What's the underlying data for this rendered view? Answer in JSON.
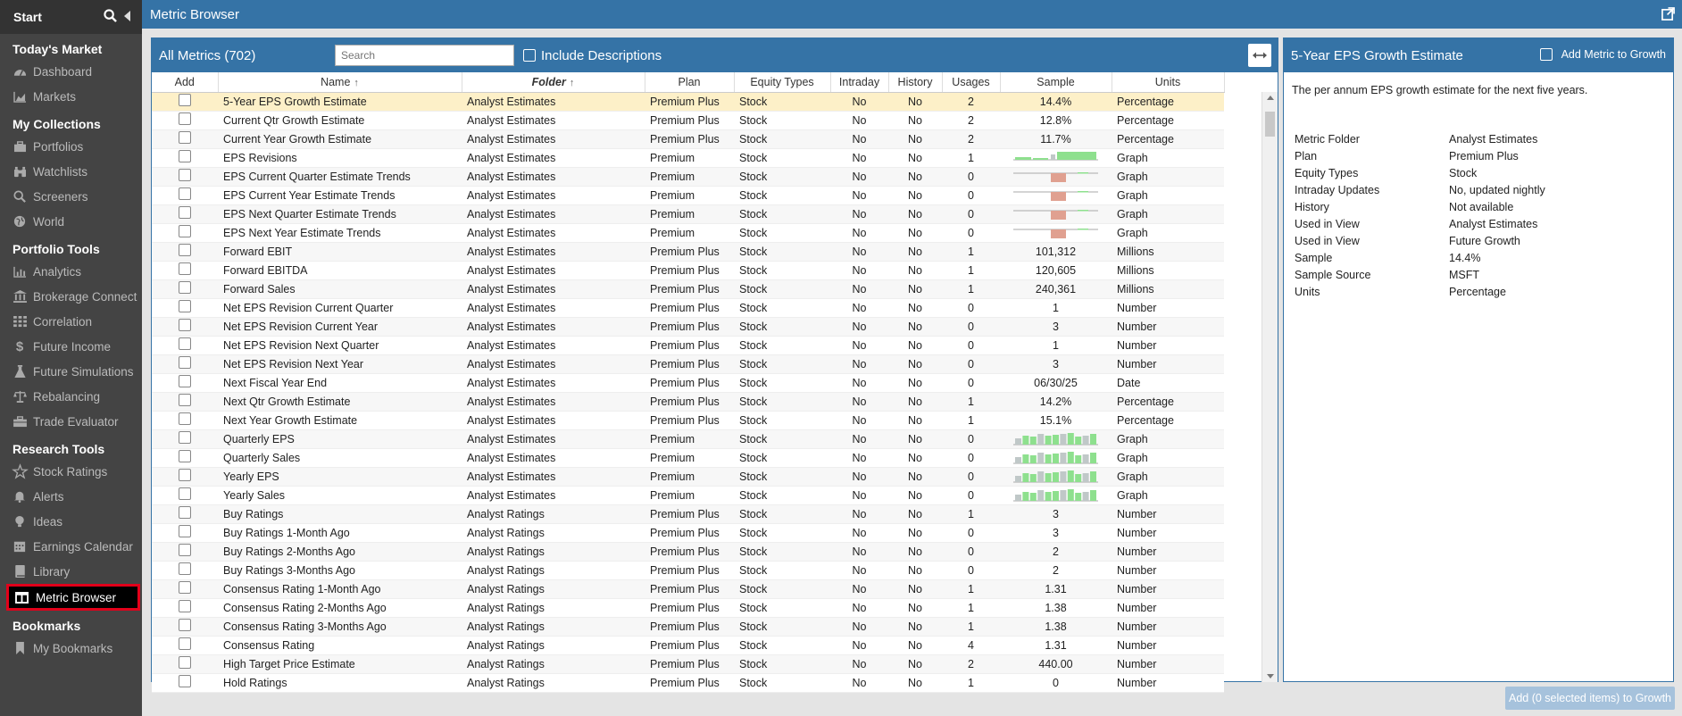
{
  "app": {
    "title": "Metric Browser"
  },
  "sidebar": {
    "start_label": "Start",
    "sections": [
      {
        "title": "Today's Market",
        "items": [
          {
            "label": "Dashboard",
            "icon": "dashboard-icon"
          },
          {
            "label": "Markets",
            "icon": "area-chart-icon"
          }
        ]
      },
      {
        "title": "My Collections",
        "items": [
          {
            "label": "Portfolios",
            "icon": "briefcase-icon"
          },
          {
            "label": "Watchlists",
            "icon": "binoculars-icon"
          },
          {
            "label": "Screeners",
            "icon": "search-icon"
          },
          {
            "label": "World",
            "icon": "globe-icon"
          }
        ]
      },
      {
        "title": "Portfolio Tools",
        "items": [
          {
            "label": "Analytics",
            "icon": "bar-chart-icon"
          },
          {
            "label": "Brokerage Connect",
            "icon": "bank-icon"
          },
          {
            "label": "Correlation",
            "icon": "grid-icon"
          },
          {
            "label": "Future Income",
            "icon": "dollar-icon"
          },
          {
            "label": "Future Simulations",
            "icon": "flask-icon"
          },
          {
            "label": "Rebalancing",
            "icon": "balance-scale-icon"
          },
          {
            "label": "Trade Evaluator",
            "icon": "toolbox-icon"
          }
        ]
      },
      {
        "title": "Research Tools",
        "items": [
          {
            "label": "Stock Ratings",
            "icon": "star-icon"
          },
          {
            "label": "Alerts",
            "icon": "bell-icon"
          },
          {
            "label": "Ideas",
            "icon": "lightbulb-icon"
          },
          {
            "label": "Earnings Calendar",
            "icon": "calendar-icon"
          },
          {
            "label": "Library",
            "icon": "book-icon"
          },
          {
            "label": "Metric Browser",
            "icon": "table-icon",
            "active": true
          }
        ]
      },
      {
        "title": "Bookmarks",
        "items": [
          {
            "label": "My Bookmarks",
            "icon": "bookmark-icon"
          }
        ]
      }
    ]
  },
  "main": {
    "title": "All Metrics (702)",
    "search_placeholder": "Search",
    "include_descriptions_label": "Include Descriptions",
    "columns": [
      "Add",
      "Name",
      "Folder",
      "Plan",
      "Equity Types",
      "Intraday",
      "History",
      "Usages",
      "Sample",
      "Units"
    ],
    "rows": [
      {
        "name": "5-Year EPS Growth Estimate",
        "folder": "Analyst Estimates",
        "plan": "Premium Plus",
        "equity": "Stock",
        "intraday": "No",
        "history": "No",
        "usages": "2",
        "sample": "14.4%",
        "units": "Percentage",
        "selected": true
      },
      {
        "name": "Current Qtr Growth Estimate",
        "folder": "Analyst Estimates",
        "plan": "Premium Plus",
        "equity": "Stock",
        "intraday": "No",
        "history": "No",
        "usages": "2",
        "sample": "12.8%",
        "units": "Percentage"
      },
      {
        "name": "Current Year Growth Estimate",
        "folder": "Analyst Estimates",
        "plan": "Premium Plus",
        "equity": "Stock",
        "intraday": "No",
        "history": "No",
        "usages": "2",
        "sample": "11.7%",
        "units": "Percentage"
      },
      {
        "name": "EPS Revisions",
        "folder": "Analyst Estimates",
        "plan": "Premium",
        "equity": "Stock",
        "intraday": "No",
        "history": "No",
        "usages": "1",
        "sample": "",
        "units": "Graph",
        "spark": "revisions"
      },
      {
        "name": "EPS Current Quarter Estimate Trends",
        "folder": "Analyst Estimates",
        "plan": "Premium",
        "equity": "Stock",
        "intraday": "No",
        "history": "No",
        "usages": "0",
        "sample": "",
        "units": "Graph",
        "spark": "trend"
      },
      {
        "name": "EPS Current Year Estimate Trends",
        "folder": "Analyst Estimates",
        "plan": "Premium",
        "equity": "Stock",
        "intraday": "No",
        "history": "No",
        "usages": "0",
        "sample": "",
        "units": "Graph",
        "spark": "trend"
      },
      {
        "name": "EPS Next Quarter Estimate Trends",
        "folder": "Analyst Estimates",
        "plan": "Premium",
        "equity": "Stock",
        "intraday": "No",
        "history": "No",
        "usages": "0",
        "sample": "",
        "units": "Graph",
        "spark": "trend"
      },
      {
        "name": "EPS Next Year Estimate Trends",
        "folder": "Analyst Estimates",
        "plan": "Premium",
        "equity": "Stock",
        "intraday": "No",
        "history": "No",
        "usages": "0",
        "sample": "",
        "units": "Graph",
        "spark": "trend"
      },
      {
        "name": "Forward EBIT",
        "folder": "Analyst Estimates",
        "plan": "Premium Plus",
        "equity": "Stock",
        "intraday": "No",
        "history": "No",
        "usages": "1",
        "sample": "101,312",
        "units": "Millions"
      },
      {
        "name": "Forward EBITDA",
        "folder": "Analyst Estimates",
        "plan": "Premium Plus",
        "equity": "Stock",
        "intraday": "No",
        "history": "No",
        "usages": "1",
        "sample": "120,605",
        "units": "Millions"
      },
      {
        "name": "Forward Sales",
        "folder": "Analyst Estimates",
        "plan": "Premium Plus",
        "equity": "Stock",
        "intraday": "No",
        "history": "No",
        "usages": "1",
        "sample": "240,361",
        "units": "Millions"
      },
      {
        "name": "Net EPS Revision Current Quarter",
        "folder": "Analyst Estimates",
        "plan": "Premium Plus",
        "equity": "Stock",
        "intraday": "No",
        "history": "No",
        "usages": "0",
        "sample": "1",
        "units": "Number"
      },
      {
        "name": "Net EPS Revision Current Year",
        "folder": "Analyst Estimates",
        "plan": "Premium Plus",
        "equity": "Stock",
        "intraday": "No",
        "history": "No",
        "usages": "0",
        "sample": "3",
        "units": "Number"
      },
      {
        "name": "Net EPS Revision Next Quarter",
        "folder": "Analyst Estimates",
        "plan": "Premium Plus",
        "equity": "Stock",
        "intraday": "No",
        "history": "No",
        "usages": "0",
        "sample": "1",
        "units": "Number"
      },
      {
        "name": "Net EPS Revision Next Year",
        "folder": "Analyst Estimates",
        "plan": "Premium Plus",
        "equity": "Stock",
        "intraday": "No",
        "history": "No",
        "usages": "0",
        "sample": "3",
        "units": "Number"
      },
      {
        "name": "Next Fiscal Year End",
        "folder": "Analyst Estimates",
        "plan": "Premium Plus",
        "equity": "Stock",
        "intraday": "No",
        "history": "No",
        "usages": "0",
        "sample": "06/30/25",
        "units": "Date"
      },
      {
        "name": "Next Qtr Growth Estimate",
        "folder": "Analyst Estimates",
        "plan": "Premium Plus",
        "equity": "Stock",
        "intraday": "No",
        "history": "No",
        "usages": "1",
        "sample": "14.2%",
        "units": "Percentage"
      },
      {
        "name": "Next Year Growth Estimate",
        "folder": "Analyst Estimates",
        "plan": "Premium Plus",
        "equity": "Stock",
        "intraday": "No",
        "history": "No",
        "usages": "1",
        "sample": "15.1%",
        "units": "Percentage"
      },
      {
        "name": "Quarterly EPS",
        "folder": "Analyst Estimates",
        "plan": "Premium",
        "equity": "Stock",
        "intraday": "No",
        "history": "No",
        "usages": "0",
        "sample": "",
        "units": "Graph",
        "spark": "bars"
      },
      {
        "name": "Quarterly Sales",
        "folder": "Analyst Estimates",
        "plan": "Premium",
        "equity": "Stock",
        "intraday": "No",
        "history": "No",
        "usages": "0",
        "sample": "",
        "units": "Graph",
        "spark": "bars"
      },
      {
        "name": "Yearly EPS",
        "folder": "Analyst Estimates",
        "plan": "Premium",
        "equity": "Stock",
        "intraday": "No",
        "history": "No",
        "usages": "0",
        "sample": "",
        "units": "Graph",
        "spark": "bars"
      },
      {
        "name": "Yearly Sales",
        "folder": "Analyst Estimates",
        "plan": "Premium",
        "equity": "Stock",
        "intraday": "No",
        "history": "No",
        "usages": "0",
        "sample": "",
        "units": "Graph",
        "spark": "bars"
      },
      {
        "name": "Buy Ratings",
        "folder": "Analyst Ratings",
        "plan": "Premium Plus",
        "equity": "Stock",
        "intraday": "No",
        "history": "No",
        "usages": "1",
        "sample": "3",
        "units": "Number"
      },
      {
        "name": "Buy Ratings 1-Month Ago",
        "folder": "Analyst Ratings",
        "plan": "Premium Plus",
        "equity": "Stock",
        "intraday": "No",
        "history": "No",
        "usages": "0",
        "sample": "3",
        "units": "Number"
      },
      {
        "name": "Buy Ratings 2-Months Ago",
        "folder": "Analyst Ratings",
        "plan": "Premium Plus",
        "equity": "Stock",
        "intraday": "No",
        "history": "No",
        "usages": "0",
        "sample": "2",
        "units": "Number"
      },
      {
        "name": "Buy Ratings 3-Months Ago",
        "folder": "Analyst Ratings",
        "plan": "Premium Plus",
        "equity": "Stock",
        "intraday": "No",
        "history": "No",
        "usages": "0",
        "sample": "2",
        "units": "Number"
      },
      {
        "name": "Consensus Rating 1-Month Ago",
        "folder": "Analyst Ratings",
        "plan": "Premium Plus",
        "equity": "Stock",
        "intraday": "No",
        "history": "No",
        "usages": "1",
        "sample": "1.31",
        "units": "Number"
      },
      {
        "name": "Consensus Rating 2-Months Ago",
        "folder": "Analyst Ratings",
        "plan": "Premium Plus",
        "equity": "Stock",
        "intraday": "No",
        "history": "No",
        "usages": "1",
        "sample": "1.38",
        "units": "Number"
      },
      {
        "name": "Consensus Rating 3-Months Ago",
        "folder": "Analyst Ratings",
        "plan": "Premium Plus",
        "equity": "Stock",
        "intraday": "No",
        "history": "No",
        "usages": "1",
        "sample": "1.38",
        "units": "Number"
      },
      {
        "name": "Consensus Rating",
        "folder": "Analyst Ratings",
        "plan": "Premium Plus",
        "equity": "Stock",
        "intraday": "No",
        "history": "No",
        "usages": "4",
        "sample": "1.31",
        "units": "Number"
      },
      {
        "name": "High Target Price Estimate",
        "folder": "Analyst Ratings",
        "plan": "Premium Plus",
        "equity": "Stock",
        "intraday": "No",
        "history": "No",
        "usages": "2",
        "sample": "440.00",
        "units": "Number"
      },
      {
        "name": "Hold Ratings",
        "folder": "Analyst Ratings",
        "plan": "Premium Plus",
        "equity": "Stock",
        "intraday": "No",
        "history": "No",
        "usages": "1",
        "sample": "0",
        "units": "Number"
      }
    ]
  },
  "detail": {
    "title": "5-Year EPS Growth Estimate",
    "add_metric_label": "Add Metric to Growth",
    "description": "The per annum EPS growth estimate for the next five years.",
    "fields": [
      {
        "key": "Metric Folder",
        "value": "Analyst Estimates"
      },
      {
        "key": "Plan",
        "value": "Premium Plus"
      },
      {
        "key": "Equity Types",
        "value": "Stock"
      },
      {
        "key": "Intraday Updates",
        "value": "No, updated nightly"
      },
      {
        "key": "History",
        "value": "Not available"
      },
      {
        "key": "Used in View",
        "value": "Analyst Estimates"
      },
      {
        "key": "Used in View",
        "value": "Future Growth"
      },
      {
        "key": "Sample",
        "value": "14.4%"
      },
      {
        "key": "Sample Source",
        "value": "MSFT"
      },
      {
        "key": "Units",
        "value": "Percentage"
      }
    ]
  },
  "footer": {
    "add_selected_label": "Add (0 selected items) to Growth"
  },
  "colors": {
    "accent": "#3573a6",
    "sidebar": "#444444",
    "selected_row": "#fdf0c8",
    "spark_green": "#8ee08e",
    "spark_red": "#e0a090",
    "spark_gray": "#c0c8c8"
  }
}
